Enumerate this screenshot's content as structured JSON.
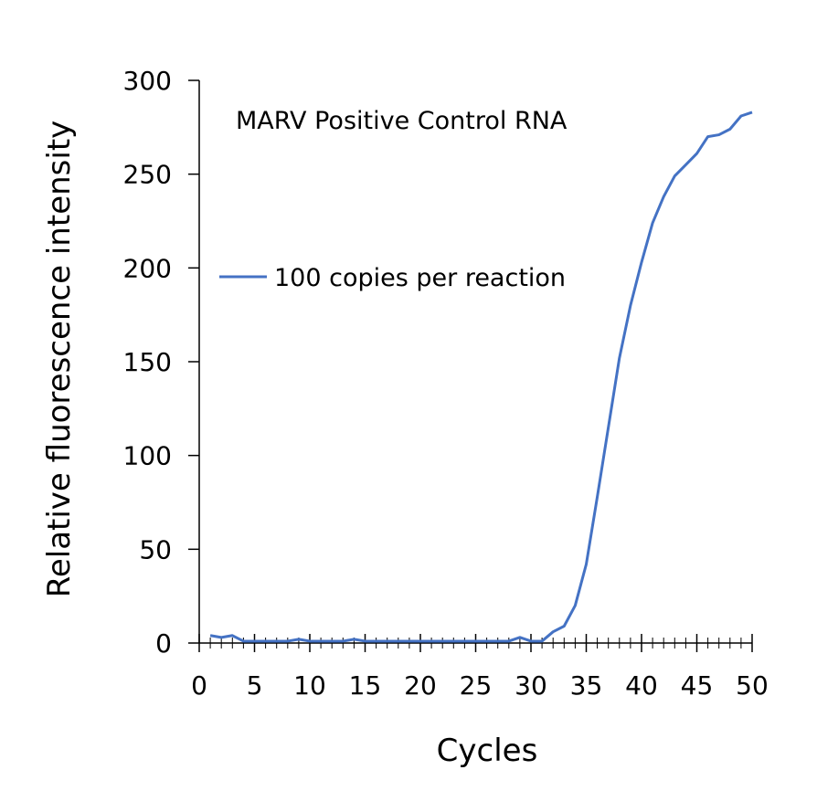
{
  "chart_data": {
    "type": "line",
    "title": "MARV Positive Control RNA",
    "xlabel": "Cycles",
    "ylabel": "Relative fluorescence intensity",
    "xlim": [
      0,
      50
    ],
    "ylim": [
      0,
      300
    ],
    "x_ticks": [
      "0",
      "5",
      "10",
      "15",
      "20",
      "25",
      "30",
      "35",
      "40",
      "45",
      "50"
    ],
    "y_ticks": [
      "0",
      "50",
      "100",
      "150",
      "200",
      "250",
      "300"
    ],
    "grid": false,
    "legend_position": "center-left",
    "series": [
      {
        "name": "100 copies per reaction",
        "color": "#4472C4",
        "x": [
          1,
          2,
          3,
          4,
          5,
          6,
          7,
          8,
          9,
          10,
          11,
          12,
          13,
          14,
          15,
          16,
          17,
          18,
          19,
          20,
          21,
          22,
          23,
          24,
          25,
          26,
          27,
          28,
          29,
          30,
          31,
          32,
          33,
          34,
          35,
          36,
          37,
          38,
          39,
          40,
          41,
          42,
          43,
          44,
          45,
          46,
          47,
          48,
          49,
          50
        ],
        "y": [
          4,
          3,
          4,
          1,
          1,
          1,
          1,
          1,
          2,
          1,
          1,
          1,
          1,
          2,
          1,
          1,
          1,
          1,
          1,
          1,
          1,
          1,
          1,
          1,
          1,
          1,
          1,
          1,
          3,
          1,
          1,
          6,
          9,
          20,
          42,
          78,
          115,
          152,
          180,
          203,
          224,
          238,
          249,
          255,
          261,
          270,
          271,
          274,
          281,
          283
        ]
      }
    ]
  }
}
